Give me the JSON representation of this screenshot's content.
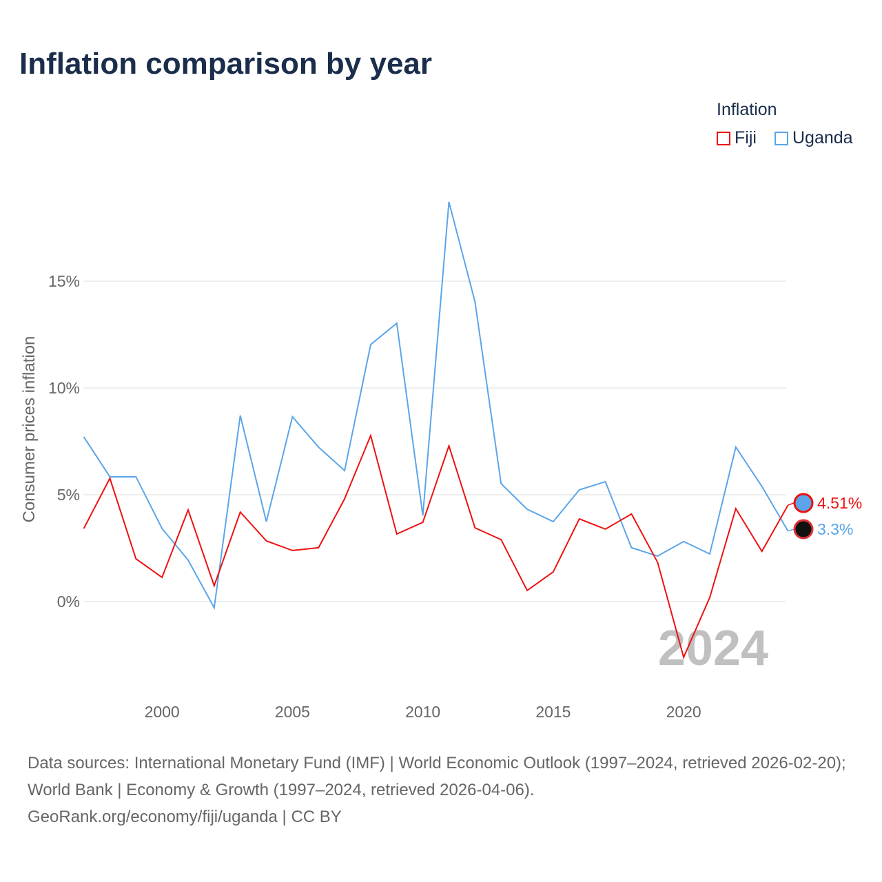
{
  "title": "Inflation comparison by year",
  "legend": {
    "title": "Inflation",
    "items": [
      {
        "label": "Fiji",
        "color": "#ee1111"
      },
      {
        "label": "Uganda",
        "color": "#5aa5ea"
      }
    ]
  },
  "footer": {
    "line1": "Data sources: International Monetary Fund (IMF) | World Economic Outlook (1997–2024, retrieved 2026-02-20); World Bank | Economy & Growth (1997–2024, retrieved 2026-04-06).",
    "line2": "GeoRank.org/economy/fiji/uganda | CC BY"
  },
  "chart_data": {
    "type": "line",
    "title": "Inflation comparison by year",
    "xlabel": "",
    "ylabel": "Consumer prices inflation",
    "year_watermark": "2024",
    "x": [
      1997,
      1998,
      1999,
      2000,
      2001,
      2002,
      2003,
      2004,
      2005,
      2006,
      2007,
      2008,
      2009,
      2010,
      2011,
      2012,
      2013,
      2014,
      2015,
      2016,
      2017,
      2018,
      2019,
      2020,
      2021,
      2022,
      2023,
      2024
    ],
    "x_ticks": [
      2000,
      2005,
      2010,
      2015,
      2020
    ],
    "y_ticks": [
      0,
      5,
      10,
      15
    ],
    "y_tick_labels": [
      "0%",
      "5%",
      "10%",
      "15%"
    ],
    "grid": true,
    "legend_position": "top-right",
    "series": [
      {
        "name": "Fiji",
        "color": "#ee1111",
        "end_label": "4.51%",
        "values": [
          3.42,
          5.77,
          2.0,
          1.13,
          4.29,
          0.74,
          4.19,
          2.84,
          2.39,
          2.52,
          4.81,
          7.77,
          3.16,
          3.71,
          7.29,
          3.45,
          2.9,
          0.52,
          1.39,
          3.87,
          3.39,
          4.1,
          1.84,
          -2.61,
          0.19,
          4.35,
          2.35,
          4.51
        ]
      },
      {
        "name": "Uganda",
        "color": "#5aa5ea",
        "end_label": "3.3%",
        "values": [
          7.71,
          5.84,
          5.84,
          3.42,
          1.94,
          -0.29,
          8.71,
          3.74,
          8.65,
          7.23,
          6.13,
          12.03,
          13.03,
          4.03,
          18.71,
          14.03,
          5.52,
          4.32,
          3.74,
          5.23,
          5.61,
          2.52,
          2.13,
          2.81,
          2.23,
          7.23,
          5.39,
          3.3
        ]
      }
    ]
  }
}
